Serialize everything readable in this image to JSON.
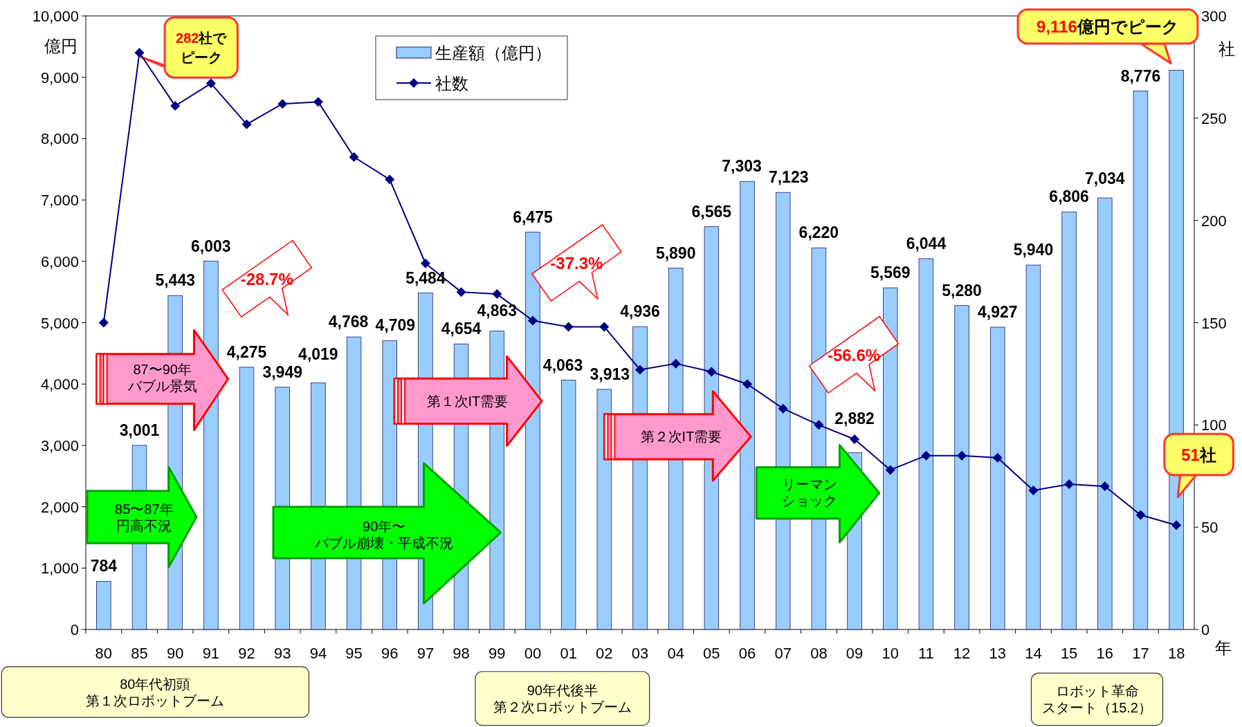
{
  "chart_data": {
    "type": "bar",
    "categories": [
      "80",
      "85",
      "90",
      "91",
      "92",
      "93",
      "94",
      "95",
      "96",
      "97",
      "98",
      "99",
      "00",
      "01",
      "02",
      "03",
      "04",
      "05",
      "06",
      "07",
      "08",
      "09",
      "10",
      "11",
      "12",
      "13",
      "14",
      "15",
      "16",
      "17",
      "18"
    ],
    "series": [
      {
        "name": "生産額（億円）",
        "color": "#99ccff",
        "values": [
          784,
          3001,
          5443,
          6003,
          4275,
          3949,
          4019,
          4768,
          4709,
          5484,
          4654,
          4863,
          6475,
          4063,
          3913,
          4936,
          5890,
          6565,
          7303,
          7123,
          6220,
          2882,
          5569,
          6044,
          5280,
          4927,
          5940,
          6806,
          7034,
          8776,
          9116
        ],
        "value_labels": [
          "784",
          "3,001",
          "5,443",
          "6,003",
          "4,275",
          "3,949",
          "4,019",
          "4,768",
          "4,709",
          "5,484",
          "4,654",
          "4,863",
          "6,475",
          "4,063",
          "3,913",
          "4,936",
          "5,890",
          "6,565",
          "7,303",
          "7,123",
          "6,220",
          "2,882",
          "5,569",
          "6,044",
          "5,280",
          "4,927",
          "5,940",
          "6,806",
          "7,034",
          "8,776",
          null
        ]
      },
      {
        "name": "社数",
        "type": "line",
        "axis": "y2",
        "color": "#000080",
        "marker": "diamond",
        "values": [
          150,
          282,
          256,
          267,
          247,
          257,
          258,
          231,
          220,
          179,
          165,
          164,
          151,
          148,
          148,
          127,
          130,
          126,
          120,
          108,
          100,
          93,
          78,
          85,
          85,
          84,
          68,
          71,
          70,
          56,
          51
        ]
      }
    ],
    "ylim": [
      0,
      10000
    ],
    "yticks": [
      0,
      {
        "value": 1000,
        "label": "1,000"
      },
      {
        "value": 2000,
        "label": "2,000"
      },
      {
        "value": 3000,
        "label": "3,000"
      },
      {
        "value": 4000,
        "label": "4,000"
      },
      {
        "value": 5000,
        "label": "5,000"
      },
      {
        "value": 6000,
        "label": "6,000"
      },
      {
        "value": 7000,
        "label": "7,000"
      },
      {
        "value": 8000,
        "label": "8,000"
      },
      {
        "value": 9000,
        "label": "9,000"
      },
      {
        "value": 10000,
        "label": "10,000"
      }
    ],
    "y2lim": [
      0,
      300
    ],
    "y2ticks": [
      0,
      50,
      100,
      150,
      200,
      250,
      300
    ],
    "ylabel": "億円",
    "y2label": "社",
    "xlabel": "年",
    "legend": "top",
    "annotations": [
      "282社でピーク",
      "9,116億円でピーク",
      "51社",
      "-28.7%",
      "-37.3%",
      "-56.6%",
      "85〜87年円高不況",
      "87〜90年バブル景気",
      "90年〜バブル崩壊・平成不況",
      "第１次IT需要",
      "第２次IT需要",
      "リーマンショック",
      "80年代初頭第１次ロボットブーム",
      "90年代後半第２次ロボットブーム",
      "ロボット革命スタート（15.2）"
    ]
  }
}
